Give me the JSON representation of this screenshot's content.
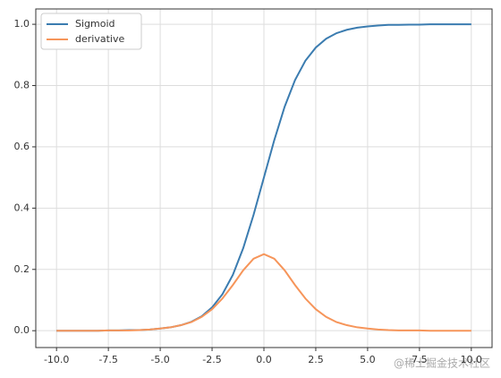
{
  "chart_data": {
    "type": "line",
    "x": [
      -10,
      -9.5,
      -9,
      -8.5,
      -8,
      -7.5,
      -7,
      -6.5,
      -6,
      -5.5,
      -5,
      -4.5,
      -4,
      -3.5,
      -3,
      -2.5,
      -2,
      -1.5,
      -1,
      -0.5,
      0,
      0.5,
      1,
      1.5,
      2,
      2.5,
      3,
      3.5,
      4,
      4.5,
      5,
      5.5,
      6,
      6.5,
      7,
      7.5,
      8,
      8.5,
      9,
      9.5,
      10
    ],
    "series": [
      {
        "name": "Sigmoid",
        "color": "#3b7cb0",
        "values": [
          0,
          0,
          0,
          0,
          0,
          0.001,
          0.001,
          0.002,
          0.002,
          0.004,
          0.007,
          0.011,
          0.018,
          0.029,
          0.047,
          0.076,
          0.119,
          0.182,
          0.269,
          0.378,
          0.5,
          0.622,
          0.731,
          0.818,
          0.881,
          0.924,
          0.953,
          0.971,
          0.982,
          0.989,
          0.993,
          0.996,
          0.998,
          0.998,
          0.999,
          0.999,
          1,
          1,
          1,
          1,
          1
        ]
      },
      {
        "name": "derivative",
        "color": "#f6955a",
        "values": [
          0,
          0,
          0,
          0,
          0,
          0.001,
          0.001,
          0.001,
          0.002,
          0.004,
          0.007,
          0.011,
          0.018,
          0.028,
          0.045,
          0.07,
          0.105,
          0.149,
          0.197,
          0.235,
          0.25,
          0.235,
          0.197,
          0.149,
          0.105,
          0.07,
          0.045,
          0.028,
          0.018,
          0.011,
          0.007,
          0.004,
          0.002,
          0.001,
          0.001,
          0.001,
          0,
          0,
          0,
          0,
          0
        ]
      }
    ],
    "xlim": [
      -11,
      11
    ],
    "ylim": [
      -0.055,
      1.05
    ],
    "xticks": [
      {
        "value": -10,
        "label": "-10.0"
      },
      {
        "value": -7.5,
        "label": "-7.5"
      },
      {
        "value": -5,
        "label": "-5.0"
      },
      {
        "value": -2.5,
        "label": "-2.5"
      },
      {
        "value": 0,
        "label": "0.0"
      },
      {
        "value": 2.5,
        "label": "2.5"
      },
      {
        "value": 5,
        "label": "5.0"
      },
      {
        "value": 7.5,
        "label": "7.5"
      },
      {
        "value": 10,
        "label": "10.0"
      }
    ],
    "yticks": [
      {
        "value": 0,
        "label": "0.0"
      },
      0.2,
      0.4,
      0.6,
      0.8,
      {
        "value": 1,
        "label": "1.0"
      }
    ],
    "grid": true,
    "legend": "upper left",
    "watermark": "@稀土掘金技术社区"
  }
}
